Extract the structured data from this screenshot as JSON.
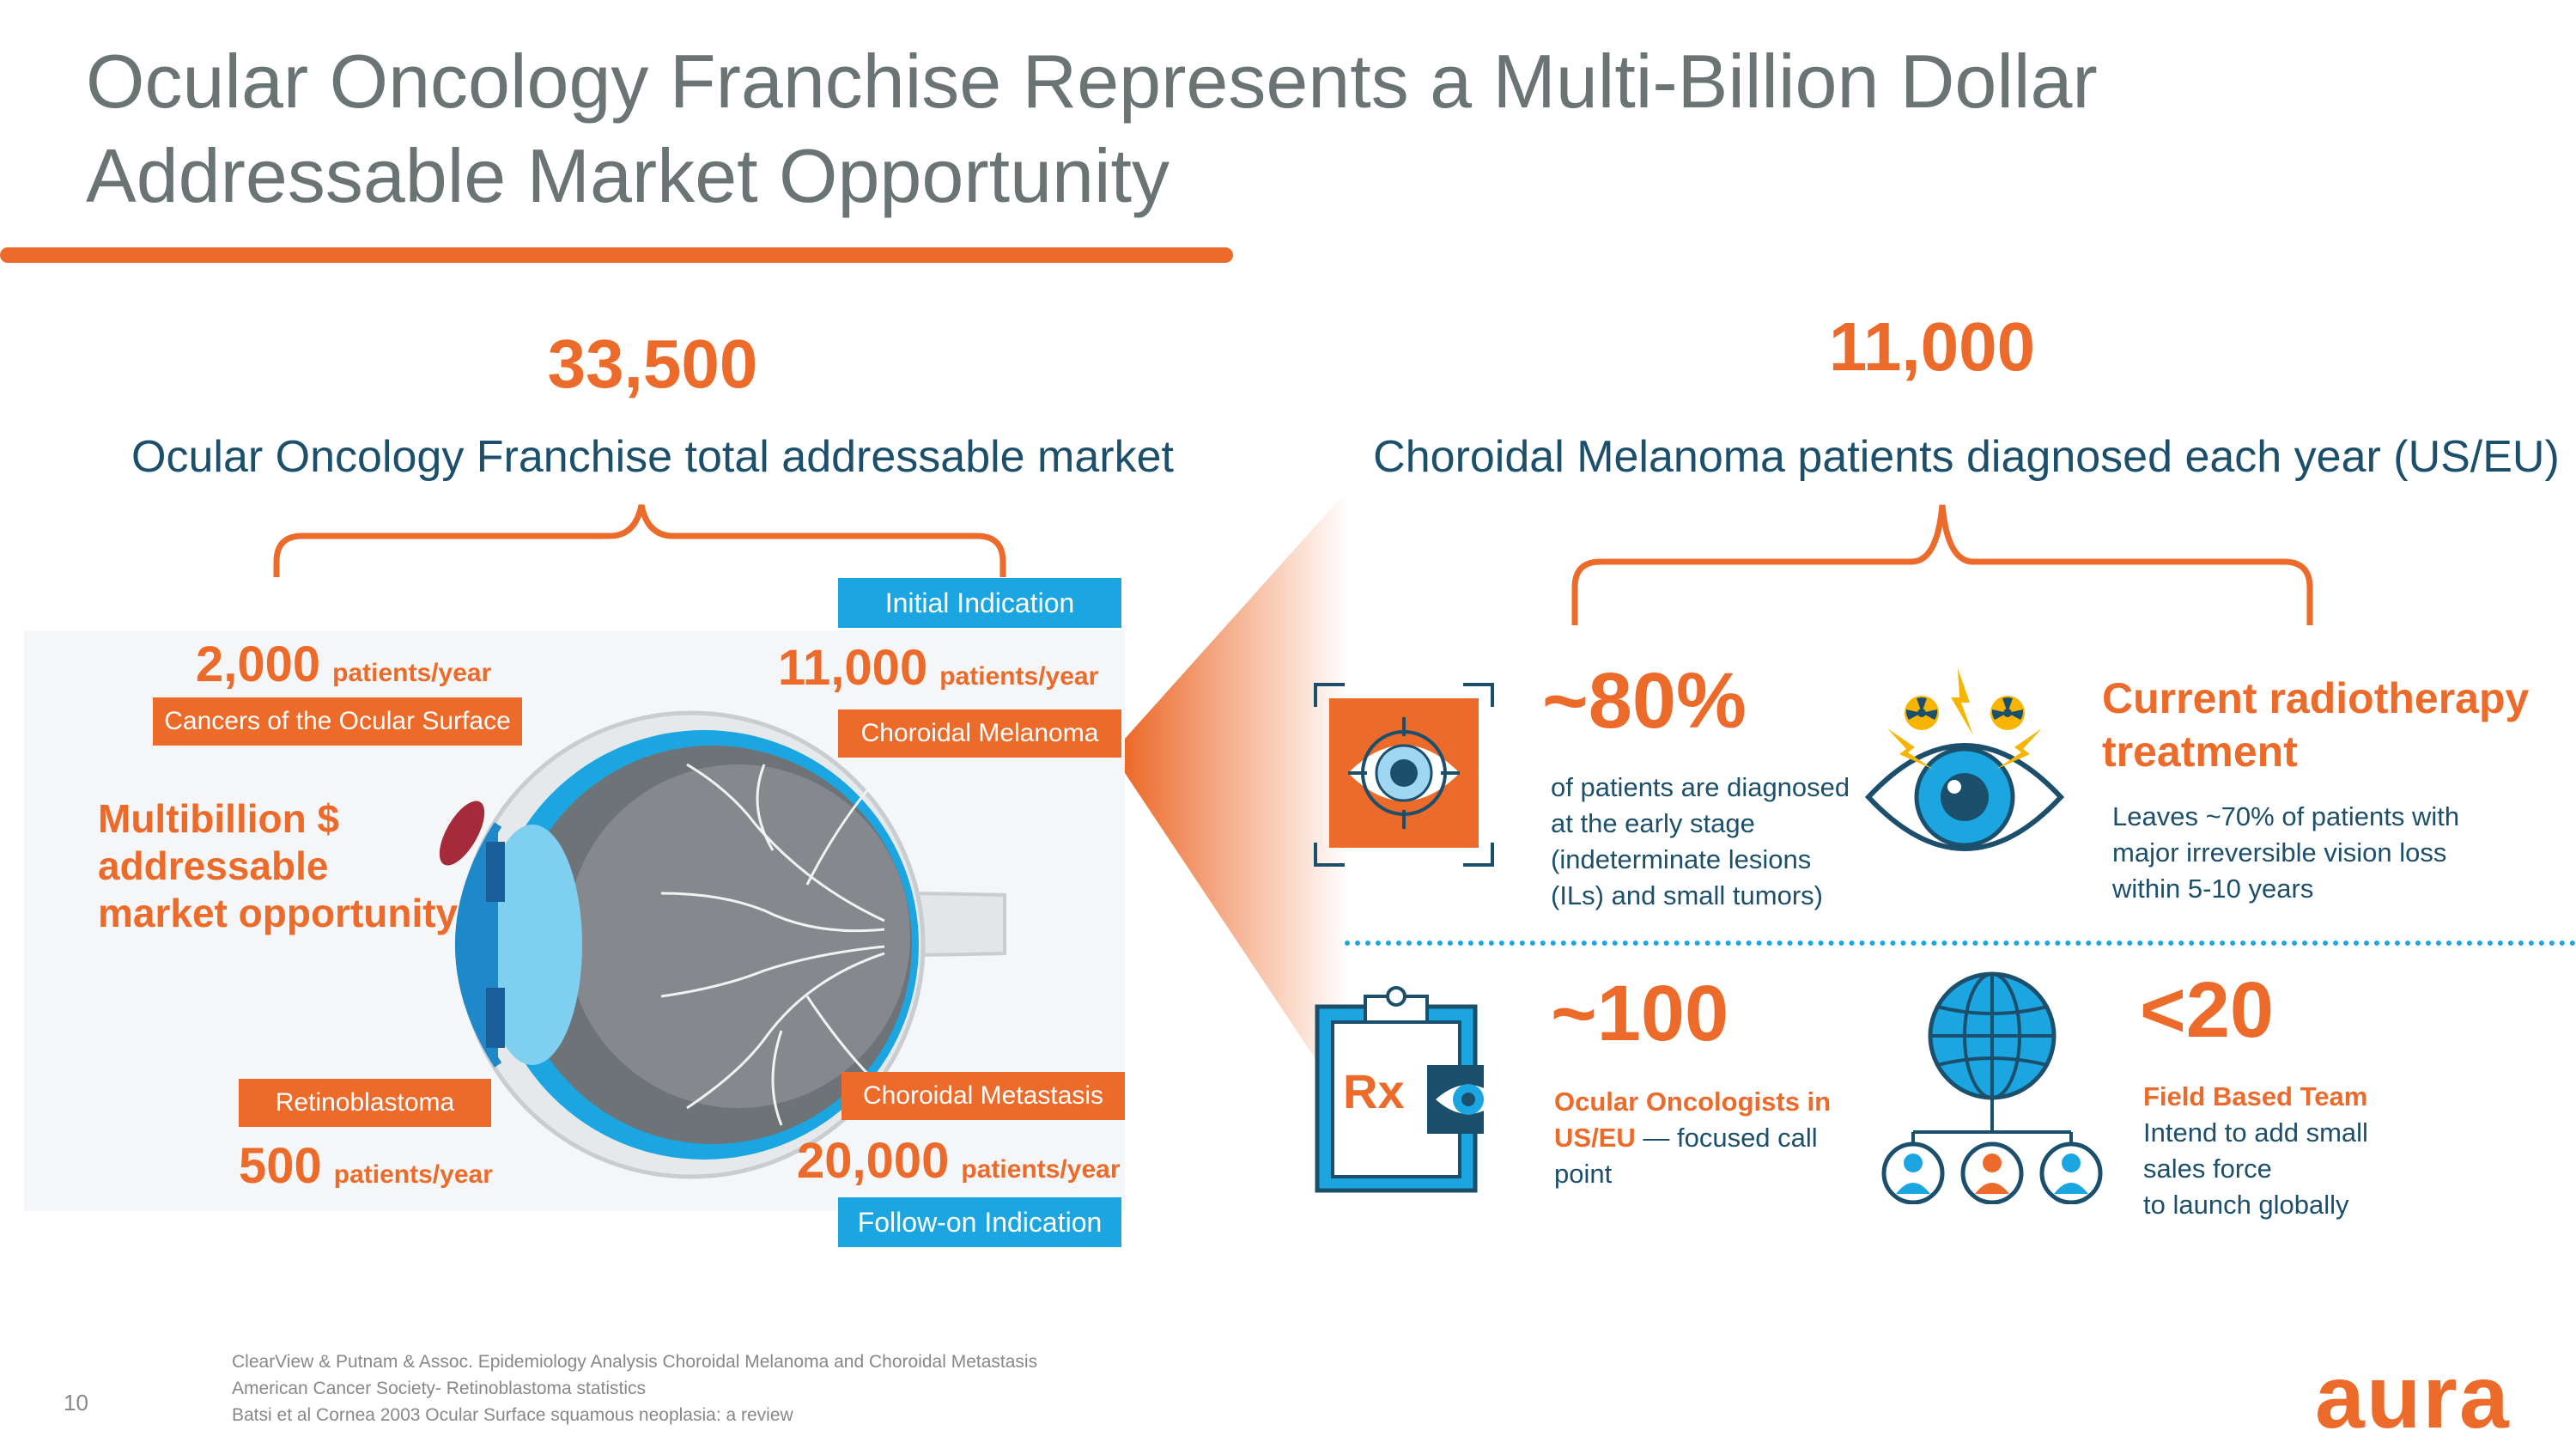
{
  "title": {
    "line1": "Ocular Oncology Franchise Represents a Multi-Billion Dollar",
    "line2": "Addressable Market Opportunity"
  },
  "left": {
    "total": "33,500",
    "subhead": "Ocular Oncology Franchise total addressable market",
    "multibillion": "Multibillion $ addressable market opportunity",
    "surface": {
      "count": "2,000",
      "unit": "patients/year",
      "label": "Cancers of the Ocular Surface"
    },
    "melanoma": {
      "indication": "Initial Indication",
      "count": "11,000",
      "unit": "patients/year",
      "label": "Choroidal Melanoma"
    },
    "retino": {
      "label": "Retinoblastoma",
      "count": "500",
      "unit": "patients/year"
    },
    "metastasis": {
      "label": "Choroidal Metastasis",
      "count": "20,000",
      "unit": "patients/year",
      "indication": "Follow-on Indication"
    }
  },
  "right": {
    "total": "11,000",
    "subhead": "Choroidal Melanoma patients diagnosed each year (US/EU)",
    "early": {
      "stat": "~80%",
      "desc": "of patients are diagnosed at the early stage (indeterminate lesions (ILs) and small tumors)"
    },
    "radio": {
      "heading": "Current radiotherapy treatment",
      "desc": "Leaves ~70% of patients with major irreversible vision loss within 5-10 years"
    },
    "oncologists": {
      "stat": "~100",
      "bold": "Ocular Oncologists in US/EU",
      "rest": " — focused call point",
      "rx": "Rx"
    },
    "team": {
      "stat": "<20",
      "bold": "Field Based Team",
      "line1": "Intend to add small",
      "line2": "sales force",
      "line3": "to launch globally"
    }
  },
  "footer": {
    "page": "10",
    "ref1": "ClearView & Putnam & Assoc. Epidemiology Analysis Choroidal Melanoma and Choroidal Metastasis",
    "ref2": "American Cancer Society- Retinoblastoma statistics",
    "ref3": "Batsi et al Cornea 2003 Ocular Surface squamous neoplasia: a review",
    "logo": "aura"
  },
  "colors": {
    "orange": "#ec6a2a",
    "blue": "#1ba6e1",
    "navy": "#1b4f6b",
    "title_gray": "#6b7475"
  },
  "icons": [
    "eye-target-icon",
    "eye-radiation-icon",
    "rx-clipboard-icon",
    "globe-network-icon"
  ]
}
